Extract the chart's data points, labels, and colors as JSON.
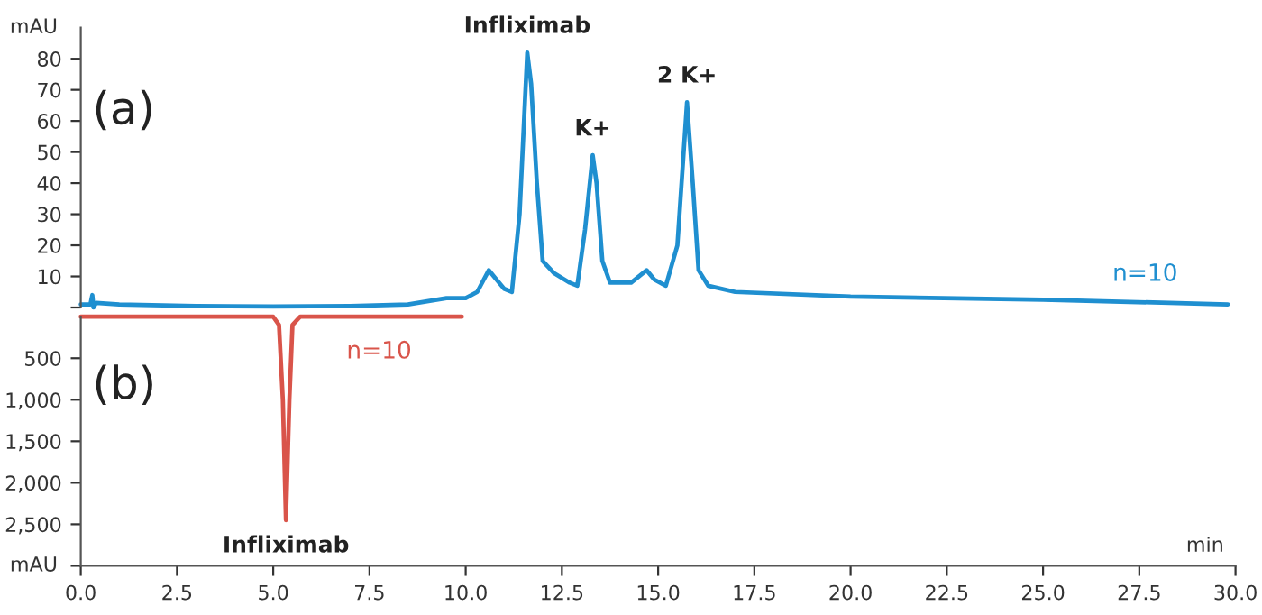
{
  "chart_data": [
    {
      "type": "line",
      "xlim": [
        0,
        30
      ],
      "ylim": [
        0,
        90
      ],
      "yticks": [
        {
          "value": 0,
          "label": null
        },
        10,
        20,
        30,
        40,
        50,
        60,
        70,
        80
      ],
      "ylabel": "mAU",
      "tick_labels": "y",
      "grid": false,
      "series": [
        {
          "name": "n=10",
          "color": "#1f8fd0",
          "x": [
            0,
            0.25,
            0.3,
            0.33,
            0.4,
            1,
            3,
            5,
            7,
            8.5,
            9,
            9.5,
            10,
            10.3,
            10.6,
            10.8,
            11,
            11.2,
            11.4,
            11.6,
            11.7,
            11.85,
            12.0,
            12.3,
            12.7,
            12.9,
            13.1,
            13.3,
            13.4,
            13.55,
            13.75,
            14.0,
            14.3,
            14.7,
            14.9,
            15.2,
            15.5,
            15.75,
            15.9,
            16.05,
            16.3,
            17,
            20,
            25,
            29.8
          ],
          "values": [
            1,
            1,
            4,
            0,
            1.5,
            1,
            0.5,
            0.3,
            0.5,
            1,
            2,
            3,
            3,
            5,
            12,
            9,
            6,
            5,
            30,
            82,
            72,
            40,
            15,
            11,
            8,
            7,
            25,
            49,
            40,
            15,
            8,
            8,
            8,
            12,
            9,
            7,
            20,
            66,
            40,
            12,
            7,
            5,
            3.5,
            2.5,
            1
          ]
        }
      ],
      "annotations": [
        "(a)",
        {
          "text": "Infliximab",
          "x": 11.6,
          "y": 82
        },
        {
          "text": "K+",
          "x": 13.3,
          "y": 49
        },
        {
          "text": "2 K+",
          "x": 15.75,
          "y": 66
        }
      ]
    },
    {
      "type": "line",
      "xlim": [
        0,
        30
      ],
      "ylim": [
        3000,
        0
      ],
      "xticks": [
        {
          "value": 0,
          "label": "0.0"
        },
        2.5,
        {
          "value": 5,
          "label": "5.0"
        },
        7.5,
        {
          "value": 10,
          "label": "10.0"
        },
        12.5,
        {
          "value": 15,
          "label": "15.0"
        },
        17.5,
        {
          "value": 20,
          "label": "20.0"
        },
        22.5,
        {
          "value": 25,
          "label": "25.0"
        },
        27.5,
        {
          "value": 30,
          "label": "30.0"
        }
      ],
      "yticks": [
        500,
        {
          "value": 1000,
          "label": "1,000"
        },
        {
          "value": 1500,
          "label": "1,500"
        },
        {
          "value": 2000,
          "label": "2,000"
        },
        {
          "value": 2500,
          "label": "2,500"
        },
        {
          "value": 3000,
          "label": null
        }
      ],
      "xlabel": "min",
      "ylabel": "mAU",
      "grid": false,
      "series": [
        {
          "name": "n=10",
          "color": "#d9544a",
          "x": [
            0,
            3,
            5,
            5.15,
            5.25,
            5.33,
            5.42,
            5.5,
            5.7,
            7,
            7.5,
            9,
            9.9
          ],
          "values": [
            0,
            0,
            0,
            100,
            1000,
            2450,
            1000,
            100,
            0,
            0,
            0,
            0,
            0
          ]
        }
      ],
      "annotations": [
        "(b)",
        {
          "text": "Infliximab",
          "x": 5.33,
          "y": 2450
        }
      ]
    }
  ]
}
